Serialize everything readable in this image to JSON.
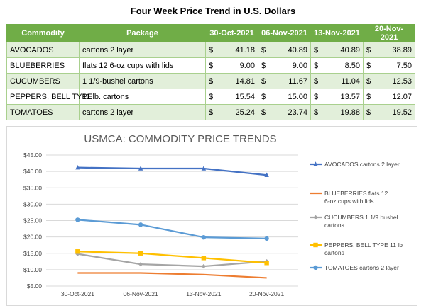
{
  "page_title": "Four Week Price Trend in U.S. Dollars",
  "table": {
    "headers": [
      "Commodity",
      "Package",
      "30-Oct-2021",
      "06-Nov-2021",
      "13-Nov-2021",
      "20-Nov-2021"
    ],
    "currency_symbol": "$",
    "rows": [
      {
        "commodity": "AVOCADOS",
        "package": "cartons 2 layer",
        "prices": [
          "41.18",
          "40.89",
          "40.89",
          "38.89"
        ]
      },
      {
        "commodity": "BLUEBERRIES",
        "package": "flats 12 6-oz cups with lids",
        "prices": [
          "9.00",
          "9.00",
          "8.50",
          "7.50"
        ]
      },
      {
        "commodity": "CUCUMBERS",
        "package": "1 1/9-bushel cartons",
        "prices": [
          "14.81",
          "11.67",
          "11.04",
          "12.53"
        ]
      },
      {
        "commodity": "PEPPERS, BELL TYPE",
        "package": "11 lb. cartons",
        "prices": [
          "15.54",
          "15.00",
          "13.57",
          "12.07"
        ]
      },
      {
        "commodity": "TOMATOES",
        "package": "cartons 2 layer",
        "prices": [
          "25.24",
          "23.74",
          "19.88",
          "19.52"
        ]
      }
    ]
  },
  "chart_data": {
    "type": "line",
    "title": "USMCA: COMMODITY PRICE TRENDS",
    "categories": [
      "30-Oct-2021",
      "06-Nov-2021",
      "13-Nov-2021",
      "20-Nov-2021"
    ],
    "ylim": [
      5,
      45
    ],
    "y_ticks": [
      "$5.00",
      "$10.00",
      "$15.00",
      "$20.00",
      "$25.00",
      "$30.00",
      "$35.00",
      "$40.00",
      "$45.00"
    ],
    "grid": true,
    "legend_position": "right",
    "series": [
      {
        "name": "AVOCADOS cartons 2 layer",
        "values": [
          41.18,
          40.89,
          40.89,
          38.89
        ],
        "color": "#4472c4",
        "marker": "triangle"
      },
      {
        "name": "BLUEBERRIES flats 12 6-oz cups with lids",
        "values": [
          9.0,
          9.0,
          8.5,
          7.5
        ],
        "color": "#ed7d31",
        "marker": "none"
      },
      {
        "name": "CUCUMBERS 1 1/9 bushel cartons",
        "values": [
          14.81,
          11.67,
          11.04,
          12.53
        ],
        "color": "#a5a5a5",
        "marker": "diamond"
      },
      {
        "name": "PEPPERS, BELL TYPE 11 lb cartons",
        "values": [
          15.54,
          15.0,
          13.57,
          12.07
        ],
        "color": "#ffc000",
        "marker": "square"
      },
      {
        "name": "TOMATOES cartons 2 layer",
        "values": [
          25.24,
          23.74,
          19.88,
          19.52
        ],
        "color": "#5b9bd5",
        "marker": "circle"
      }
    ]
  }
}
